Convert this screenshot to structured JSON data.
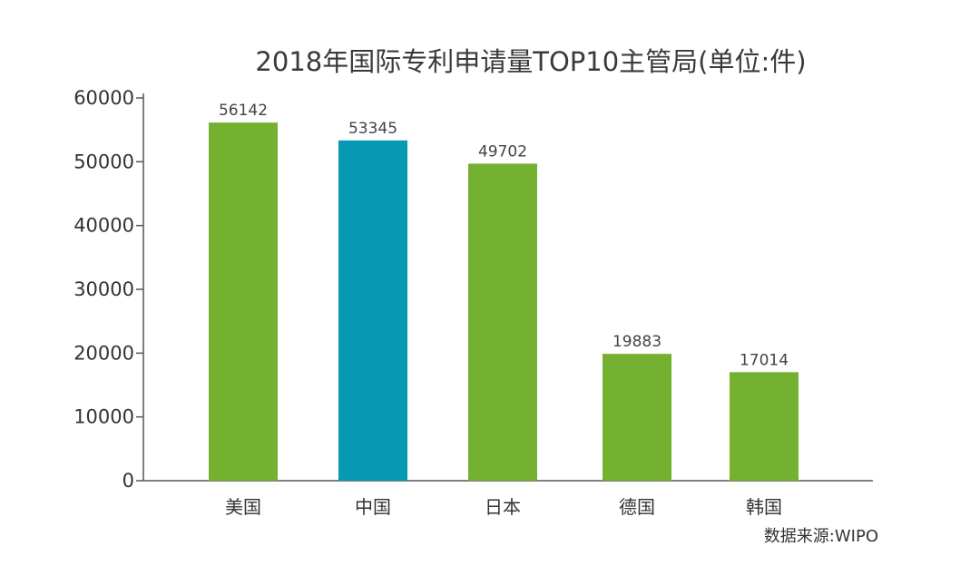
{
  "chart_data": {
    "type": "bar",
    "title": "2018年国际专利申请量TOP10主管局(单位:件)",
    "categories": [
      "美国",
      "中国",
      "日本",
      "德国",
      "韩国"
    ],
    "values": [
      56142,
      53345,
      49702,
      19883,
      17014
    ],
    "bar_colors": [
      "#74b131",
      "#0899b5",
      "#74b131",
      "#74b131",
      "#74b131"
    ],
    "ylim": [
      0,
      60000
    ],
    "yticks": [
      0,
      10000,
      20000,
      30000,
      40000,
      50000,
      60000
    ],
    "xlabel": "",
    "ylabel": "",
    "grid": false,
    "source": "数据来源:WIPO"
  }
}
